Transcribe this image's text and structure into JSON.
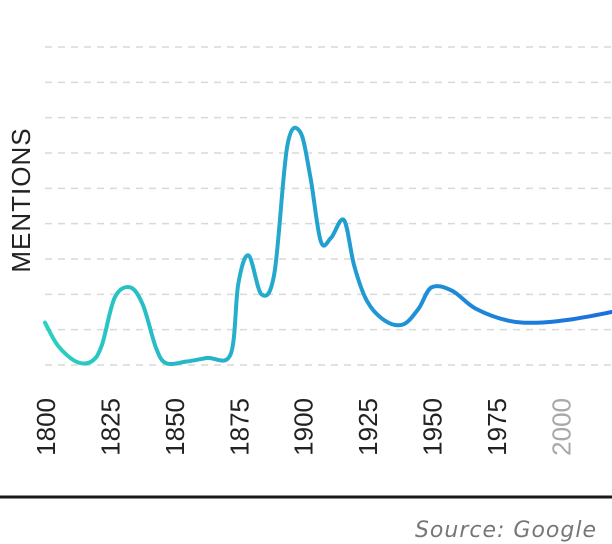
{
  "chart_data": {
    "type": "line",
    "title": "",
    "xlabel": "",
    "ylabel": "MENTIONS",
    "x_ticks": [
      "1800",
      "1825",
      "1850",
      "1875",
      "1900",
      "1925",
      "1950",
      "1975",
      "2000"
    ],
    "xlim": [
      1800,
      2020
    ],
    "ylim": [
      0,
      9
    ],
    "grid": true,
    "gradient_colors": [
      "#2ad0c0",
      "#1a6fe0"
    ],
    "series": [
      {
        "values": [
          {
            "x": 1800,
            "y": 1.2
          },
          {
            "x": 1805,
            "y": 0.55
          },
          {
            "x": 1812,
            "y": 0.1
          },
          {
            "x": 1818,
            "y": 0.1
          },
          {
            "x": 1822,
            "y": 0.55
          },
          {
            "x": 1827,
            "y": 1.9
          },
          {
            "x": 1833,
            "y": 2.2
          },
          {
            "x": 1838,
            "y": 1.7
          },
          {
            "x": 1843,
            "y": 0.5
          },
          {
            "x": 1847,
            "y": 0.05
          },
          {
            "x": 1855,
            "y": 0.1
          },
          {
            "x": 1863,
            "y": 0.2
          },
          {
            "x": 1872,
            "y": 0.3
          },
          {
            "x": 1875,
            "y": 2.3
          },
          {
            "x": 1879,
            "y": 3.1
          },
          {
            "x": 1884,
            "y": 2.0
          },
          {
            "x": 1889,
            "y": 2.6
          },
          {
            "x": 1894,
            "y": 6.2
          },
          {
            "x": 1899,
            "y": 6.6
          },
          {
            "x": 1903,
            "y": 5.3
          },
          {
            "x": 1907,
            "y": 3.5
          },
          {
            "x": 1911,
            "y": 3.6
          },
          {
            "x": 1916,
            "y": 4.1
          },
          {
            "x": 1920,
            "y": 2.8
          },
          {
            "x": 1925,
            "y": 1.8
          },
          {
            "x": 1932,
            "y": 1.25
          },
          {
            "x": 1939,
            "y": 1.15
          },
          {
            "x": 1945,
            "y": 1.6
          },
          {
            "x": 1950,
            "y": 2.2
          },
          {
            "x": 1958,
            "y": 2.1
          },
          {
            "x": 1967,
            "y": 1.6
          },
          {
            "x": 1980,
            "y": 1.25
          },
          {
            "x": 1992,
            "y": 1.2
          },
          {
            "x": 2005,
            "y": 1.3
          },
          {
            "x": 2020,
            "y": 1.5
          }
        ]
      }
    ]
  },
  "source_label": "Source: Google"
}
